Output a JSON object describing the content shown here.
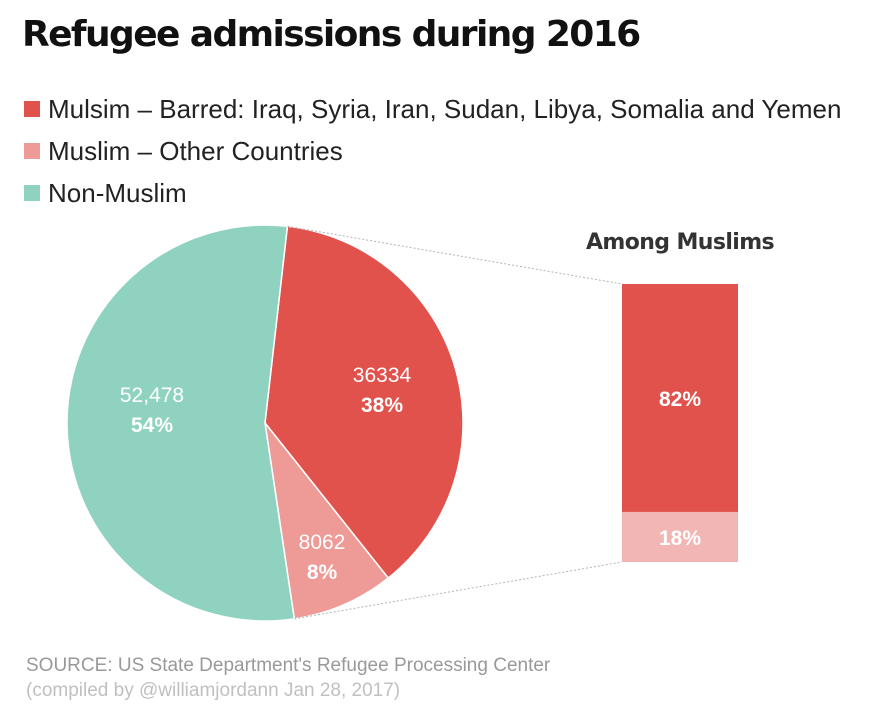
{
  "chart_data": {
    "type": "pie",
    "title": "Refugee admissions during 2016",
    "legend": [
      {
        "label": "Mulsim – Barred: Iraq, Syria, Iran, Sudan, Libya, Somalia and Yemen",
        "color": "#e1524d"
      },
      {
        "label": "Muslim – Other Countries",
        "color": "#ee9a97"
      },
      {
        "label": "Non-Muslim",
        "color": "#8fd2c0"
      }
    ],
    "slices": [
      {
        "name": "Mulsim – Barred",
        "value": 36334,
        "value_label": "36334",
        "percent_label": "38%",
        "color": "#e1524d"
      },
      {
        "name": "Muslim – Other Countries",
        "value": 8062,
        "value_label": "8062",
        "percent_label": "8%",
        "color": "#ee9a97"
      },
      {
        "name": "Non-Muslim",
        "value": 52478,
        "value_label": "52,478",
        "percent_label": "54%",
        "color": "#8fd2c0"
      }
    ],
    "breakdown": {
      "title": "Among Muslims",
      "segments": [
        {
          "name": "Barred",
          "value": 82,
          "label": "82%",
          "color": "#e1524d"
        },
        {
          "name": "Other Countries",
          "value": 18,
          "label": "18%",
          "color": "#f2b6b4"
        }
      ]
    }
  },
  "footer": {
    "source": "SOURCE: US State Department's Refugee Processing Center",
    "credit": "(compiled by @williamjordann Jan 28, 2017)"
  }
}
